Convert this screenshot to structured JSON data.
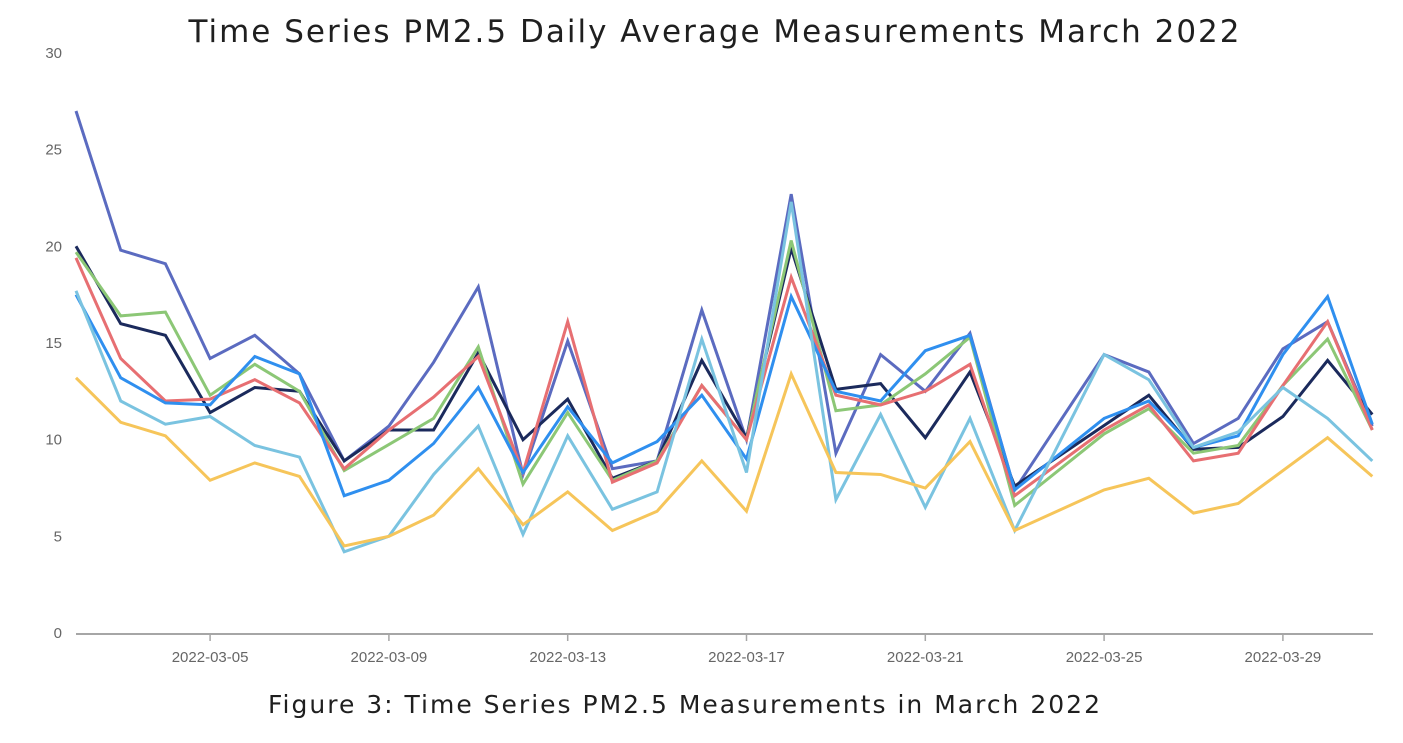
{
  "figure": {
    "caption": "Figure 3: Time Series PM2.5 Measurements in March 2022"
  },
  "chart_data": {
    "type": "line",
    "title": "Time Series PM2.5 Daily Average Measurements March 2022",
    "xlabel": "",
    "ylabel": "",
    "ylim": [
      0,
      30
    ],
    "yticks": [
      0,
      5,
      10,
      15,
      20,
      25,
      30
    ],
    "x": [
      "2022-03-02",
      "2022-03-03",
      "2022-03-04",
      "2022-03-05",
      "2022-03-06",
      "2022-03-07",
      "2022-03-08",
      "2022-03-09",
      "2022-03-10",
      "2022-03-11",
      "2022-03-12",
      "2022-03-13",
      "2022-03-14",
      "2022-03-15",
      "2022-03-16",
      "2022-03-17",
      "2022-03-18",
      "2022-03-19",
      "2022-03-20",
      "2022-03-21",
      "2022-03-22",
      "2022-03-23",
      "2022-03-24",
      "2022-03-25",
      "2022-03-26",
      "2022-03-27",
      "2022-03-28",
      "2022-03-29",
      "2022-03-30",
      "2022-03-31"
    ],
    "xticks": [
      "2022-03-05",
      "2022-03-09",
      "2022-03-13",
      "2022-03-17",
      "2022-03-21",
      "2022-03-25",
      "2022-03-29"
    ],
    "grid": false,
    "legend": "none",
    "series": [
      {
        "color": "#5b6bc0",
        "values": [
          27.0,
          19.8,
          19.1,
          14.2,
          15.4,
          13.4,
          8.9,
          10.7,
          14.0,
          17.9,
          8.2,
          15.1,
          8.5,
          8.9,
          16.7,
          10.0,
          22.7,
          9.3,
          14.4,
          12.5,
          15.5,
          7.4,
          null,
          14.4,
          13.5,
          9.8,
          11.1,
          14.7,
          16.1,
          10.7
        ]
      },
      {
        "color": "#1b2a5c",
        "values": [
          20.0,
          16.0,
          15.4,
          11.4,
          12.7,
          12.5,
          8.9,
          10.5,
          10.5,
          14.5,
          10.0,
          12.1,
          8.0,
          8.9,
          14.1,
          10.1,
          19.9,
          12.6,
          12.9,
          10.1,
          13.5,
          7.6,
          null,
          null,
          12.3,
          9.5,
          9.6,
          11.2,
          14.1,
          11.3
        ]
      },
      {
        "color": "#8cc776",
        "values": [
          19.7,
          16.4,
          16.6,
          12.3,
          13.9,
          12.5,
          8.4,
          null,
          11.1,
          14.8,
          7.7,
          11.4,
          7.9,
          8.9,
          12.8,
          10.0,
          20.3,
          11.5,
          11.8,
          13.4,
          15.3,
          6.6,
          null,
          10.3,
          11.6,
          9.3,
          9.7,
          12.8,
          15.2,
          10.5
        ]
      },
      {
        "color": "#e76f72",
        "values": [
          19.4,
          14.2,
          12.0,
          12.1,
          13.1,
          11.9,
          8.5,
          10.5,
          12.2,
          14.3,
          8.3,
          16.1,
          7.8,
          8.8,
          12.8,
          10.0,
          18.4,
          12.3,
          11.8,
          12.5,
          13.9,
          7.1,
          null,
          10.5,
          11.8,
          8.9,
          9.3,
          12.8,
          16.1,
          10.5
        ]
      },
      {
        "color": "#2f8fef",
        "values": [
          17.5,
          13.2,
          11.9,
          11.8,
          14.3,
          13.4,
          7.1,
          7.9,
          9.8,
          12.7,
          8.3,
          11.7,
          8.8,
          9.9,
          12.3,
          9.0,
          17.4,
          12.5,
          12.0,
          14.6,
          15.4,
          7.4,
          null,
          11.1,
          12.0,
          9.6,
          10.2,
          14.4,
          17.4,
          10.8
        ]
      },
      {
        "color": "#7ac3e0",
        "values": [
          17.7,
          12.0,
          10.8,
          11.2,
          9.7,
          9.1,
          4.2,
          5.0,
          8.2,
          10.7,
          5.1,
          10.2,
          6.4,
          7.3,
          15.2,
          8.3,
          22.3,
          6.9,
          11.3,
          6.5,
          11.1,
          5.3,
          null,
          14.4,
          13.1,
          9.6,
          10.4,
          12.7,
          11.1,
          8.9
        ]
      },
      {
        "color": "#f6c55a",
        "values": [
          13.2,
          10.9,
          10.2,
          7.9,
          8.8,
          8.1,
          4.5,
          5.0,
          6.1,
          8.5,
          5.6,
          7.3,
          5.3,
          6.3,
          8.9,
          6.3,
          13.4,
          8.3,
          8.2,
          7.5,
          9.9,
          5.3,
          null,
          7.4,
          8.0,
          6.2,
          6.7,
          null,
          10.1,
          8.1
        ]
      }
    ]
  }
}
